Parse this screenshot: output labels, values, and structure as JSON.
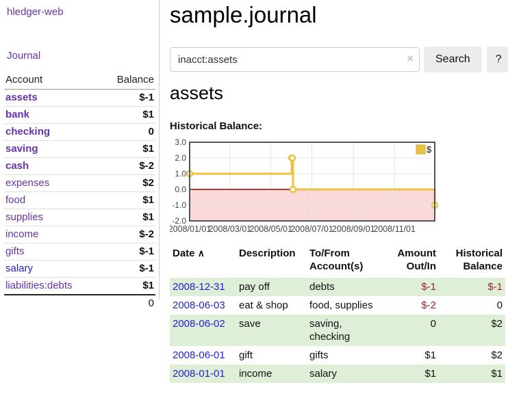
{
  "app_title": "hledger-web",
  "sidebar": {
    "journal_link": "Journal",
    "accounts": {
      "headers": {
        "account": "Account",
        "balance": "Balance"
      },
      "rows": [
        {
          "name": "assets",
          "balance": "$-1"
        },
        {
          "name": "bank",
          "balance": "$1"
        },
        {
          "name": "checking",
          "balance": "0"
        },
        {
          "name": "saving",
          "balance": "$1"
        },
        {
          "name": "cash",
          "balance": "$-2"
        },
        {
          "name": "expenses",
          "balance": "$2"
        },
        {
          "name": "food",
          "balance": "$1"
        },
        {
          "name": "supplies",
          "balance": "$1"
        },
        {
          "name": "income",
          "balance": "$-2"
        },
        {
          "name": "gifts",
          "balance": "$-1"
        },
        {
          "name": "salary",
          "balance": "$-1"
        },
        {
          "name": "liabilities:debts",
          "balance": "$1"
        }
      ],
      "total": "0"
    }
  },
  "main": {
    "title": "sample.journal",
    "search": {
      "value": "inacct:assets",
      "clear_icon": "×",
      "search_button": "Search",
      "help_button": "?"
    },
    "account_heading": "assets",
    "chart_heading": "Historical Balance:"
  },
  "chart_data": {
    "type": "line",
    "title": "Historical Balance:",
    "style": "steps",
    "series": [
      {
        "name": "$",
        "color": "#edc240",
        "points": [
          [
            "2008-01-01",
            1
          ],
          [
            "2008-06-01",
            2
          ],
          [
            "2008-06-02",
            2
          ],
          [
            "2008-06-03",
            0
          ],
          [
            "2008-12-31",
            -1
          ]
        ]
      }
    ],
    "xlim": [
      "2008-01-01",
      "2008-12-31"
    ],
    "ylim": [
      -2,
      3
    ],
    "y_ticks": [
      3.0,
      2.0,
      1.0,
      0.0,
      -1.0,
      -2.0
    ],
    "x_ticks": [
      "2008/01/01",
      "2008/03/01",
      "2008/05/01",
      "2008/07/01",
      "2008/09/01",
      "2008/11/01"
    ],
    "legend_position": "top-right",
    "grid": true,
    "grid_color": "#e5e5e5",
    "border_color": "#545454",
    "zero_line_color": "#8b0000",
    "negative_region_fill": "#f9d9d9",
    "tick_label_color": "#444"
  },
  "register": {
    "headers": {
      "date": "Date",
      "sort_indicator": "∧",
      "description": "Description",
      "account": "To/From Account(s)",
      "amount": "Amount Out/In",
      "balance": "Historical Balance"
    },
    "rows": [
      {
        "date": "2008-12-31",
        "description": "pay off",
        "accounts": "debts",
        "amount": "$-1",
        "balance": "$-1"
      },
      {
        "date": "2008-06-03",
        "description": "eat & shop",
        "accounts": "food, supplies",
        "amount": "$-2",
        "balance": "0"
      },
      {
        "date": "2008-06-02",
        "description": "save",
        "accounts": "saving, checking",
        "amount": "0",
        "balance": "$2"
      },
      {
        "date": "2008-06-01",
        "description": "gift",
        "accounts": "gifts",
        "amount": "$1",
        "balance": "$2"
      },
      {
        "date": "2008-01-01",
        "description": "income",
        "accounts": "salary",
        "amount": "$1",
        "balance": "$1"
      }
    ]
  },
  "colors": {
    "link_purple": "#6633aa",
    "link_blue": "#2222cc",
    "negative_strong": "#8b0000",
    "negative_soft": "#b36b6b",
    "register_negative": "#992626",
    "row_green": "#dfeed6",
    "series_gold": "#edc240"
  }
}
